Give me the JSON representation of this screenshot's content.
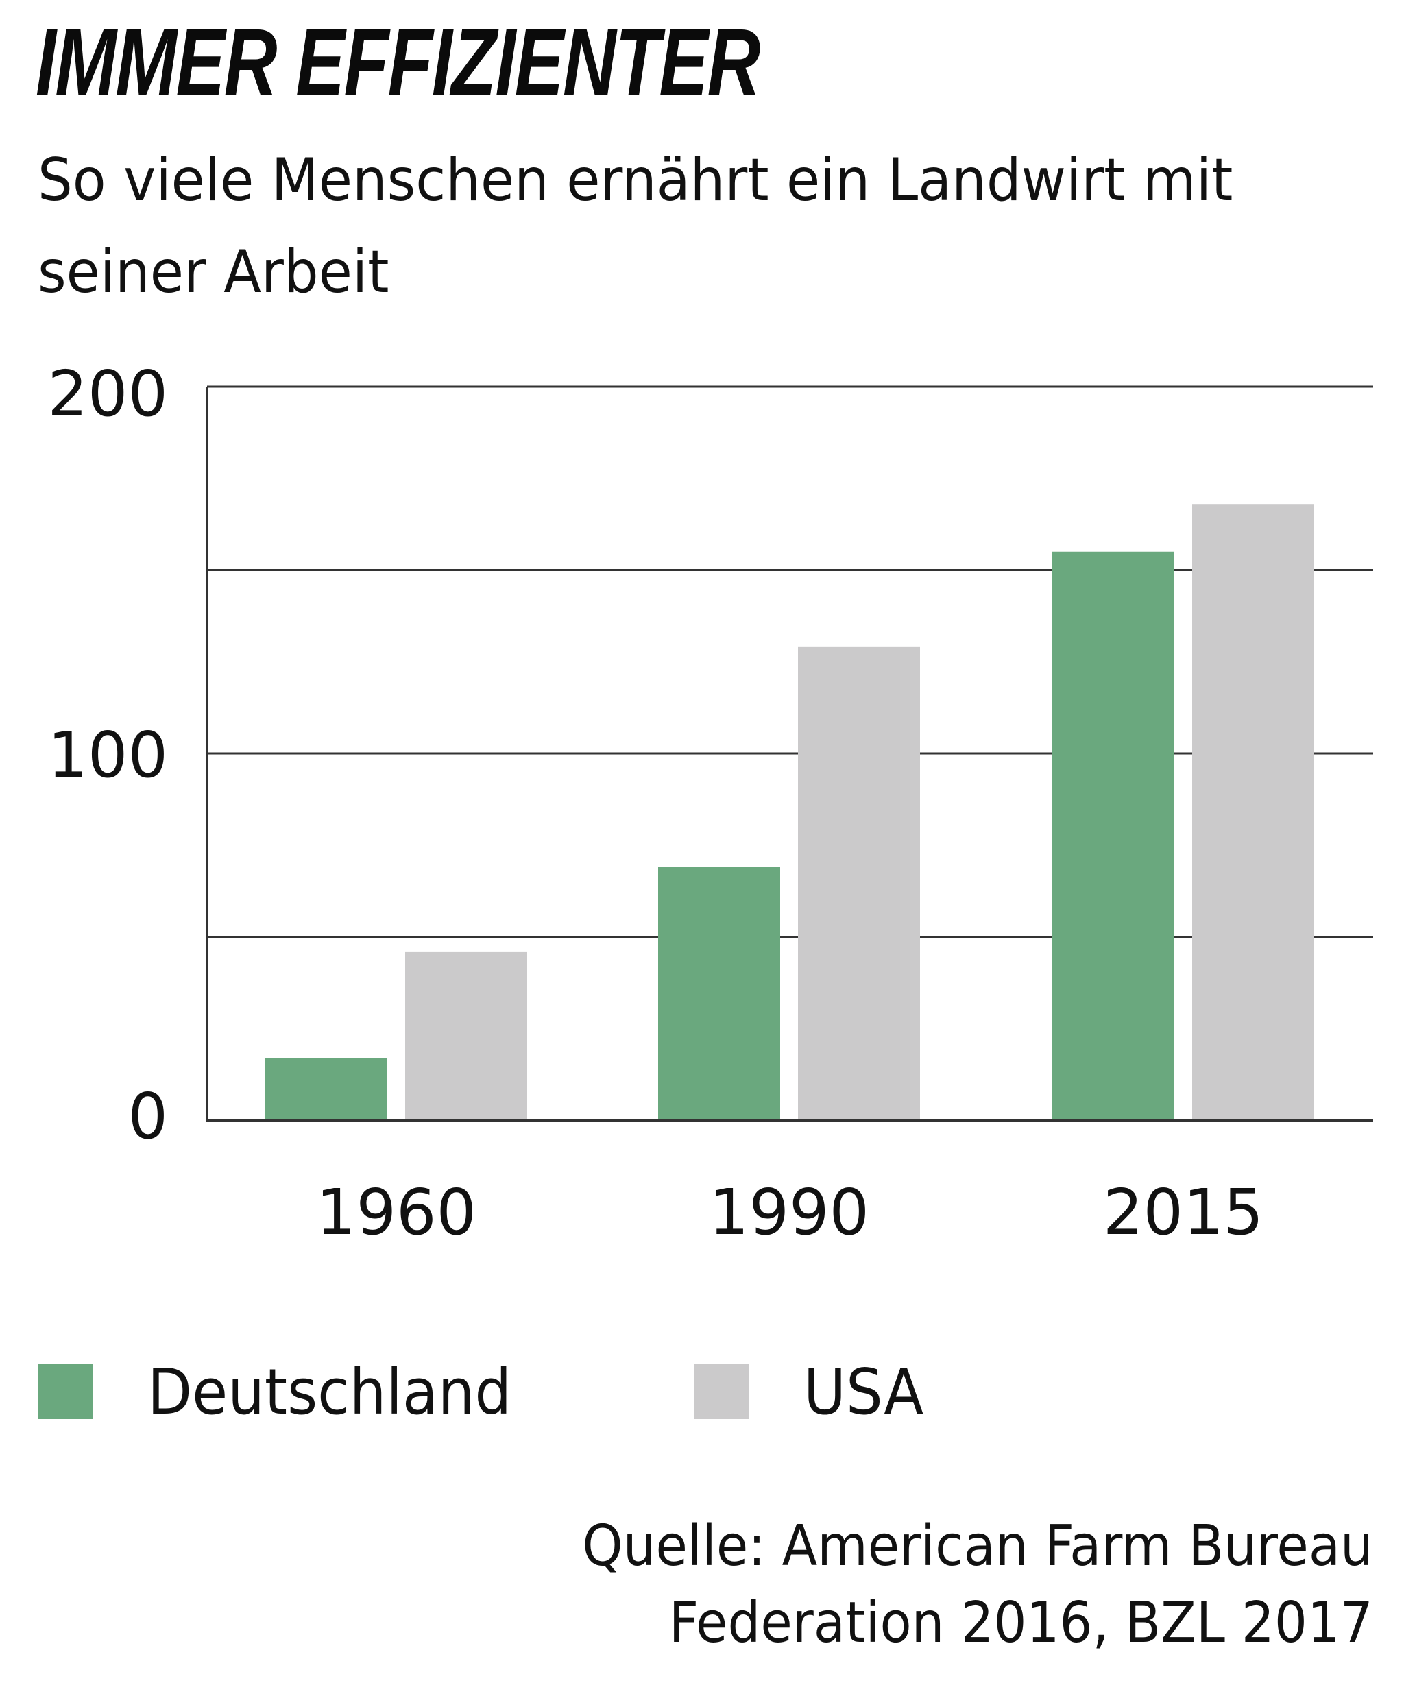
{
  "chart_data": {
    "type": "bar",
    "title": "IMMER EFFIZIENTER",
    "subtitle": "So viele Menschen ernährt ein Landwirt mit seiner Arbeit",
    "categories": [
      "1960",
      "1990",
      "2015"
    ],
    "series": [
      {
        "name": "Deutschland",
        "color": "#6aa87e",
        "values": [
          17,
          69,
          155
        ]
      },
      {
        "name": "USA",
        "color": "#cbcacb",
        "values": [
          46,
          129,
          168
        ]
      }
    ],
    "xlabel": "",
    "ylabel": "",
    "ylim": [
      0,
      200
    ],
    "yticks": [
      0,
      50,
      100,
      150,
      200
    ],
    "ytick_labels": {
      "0": "0",
      "100": "100",
      "200": "200"
    },
    "grid": true,
    "legend_position": "bottom-left",
    "source": [
      "Quelle: American Farm Bureau",
      "Federation 2016, BZL 2017"
    ]
  }
}
